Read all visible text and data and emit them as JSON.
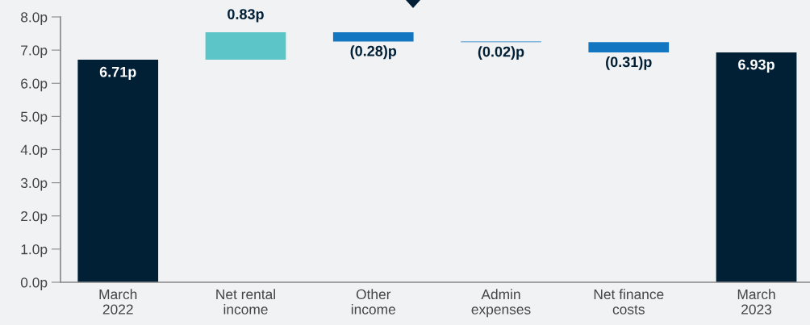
{
  "chart_data": {
    "type": "bar",
    "categories": [
      "March\n2022",
      "Net rental\nincome",
      "Other\nincome",
      "Admin\nexpenses",
      "Net finance\ncosts",
      "March\n2023"
    ],
    "values": [
      6.71,
      0.83,
      -0.28,
      -0.02,
      -0.31,
      6.93
    ],
    "base": [
      0,
      6.71,
      7.54,
      7.26,
      7.24,
      0
    ],
    "colors": [
      "#012036",
      "#5bc5c8",
      "#1277c0",
      "#1277c0",
      "#1277c0",
      "#012036"
    ],
    "value_labels": [
      "6.71p",
      "0.83p",
      "(0.28)p",
      "(0.02)p",
      "(0.31)p",
      "6.93p"
    ],
    "ylim": [
      0,
      8
    ],
    "yticks": [
      {
        "value": 0,
        "label": "0.0p"
      },
      {
        "value": 1,
        "label": "1.0p"
      },
      {
        "value": 2,
        "label": "2.0p"
      },
      {
        "value": 3,
        "label": "3.0p"
      },
      {
        "value": 4,
        "label": "4.0p"
      },
      {
        "value": 5,
        "label": "5.0p"
      },
      {
        "value": 6,
        "label": "6.0p"
      },
      {
        "value": 7,
        "label": "7.0p"
      },
      {
        "value": 8,
        "label": "8.0p"
      }
    ],
    "grid": false,
    "legend": false
  }
}
